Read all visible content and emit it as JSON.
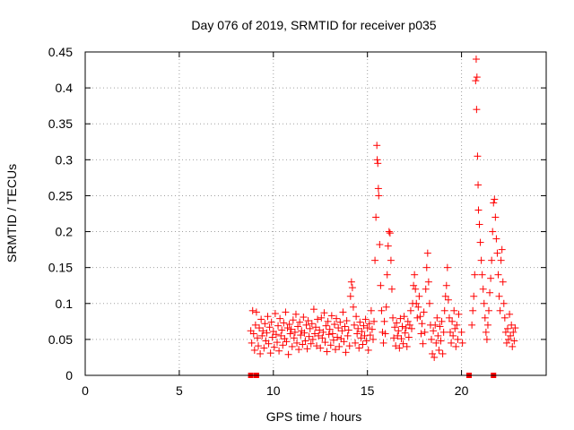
{
  "chart_data": {
    "type": "scatter",
    "title": "Day 076 of 2019, SRMTID for receiver p035",
    "xlabel": "GPS time / hours",
    "ylabel": "SRMTID / TECUs",
    "xlim": [
      0,
      24.5
    ],
    "ylim": [
      0,
      0.45
    ],
    "xticks": [
      0,
      5,
      10,
      15,
      20
    ],
    "yticks": [
      0,
      0.05,
      0.1,
      0.15,
      0.2,
      0.25,
      0.3,
      0.35,
      0.4,
      0.45
    ],
    "grid": true,
    "marker": "+",
    "color": "#ff0000",
    "series": [
      {
        "name": "SRMTID",
        "points": [
          [
            8.8,
            0.062
          ],
          [
            8.85,
            0.045
          ],
          [
            8.9,
            0.09
          ],
          [
            8.95,
            0.058
          ],
          [
            9.0,
            0.035
          ],
          [
            9.05,
            0.07
          ],
          [
            9.1,
            0.088
          ],
          [
            9.15,
            0.052
          ],
          [
            9.2,
            0.041
          ],
          [
            9.25,
            0.066
          ],
          [
            9.3,
            0.03
          ],
          [
            9.35,
            0.078
          ],
          [
            9.4,
            0.055
          ],
          [
            9.45,
            0.062
          ],
          [
            9.5,
            0.038
          ],
          [
            9.55,
            0.072
          ],
          [
            9.6,
            0.048
          ],
          [
            9.65,
            0.059
          ],
          [
            9.7,
            0.082
          ],
          [
            9.75,
            0.044
          ],
          [
            9.8,
            0.067
          ],
          [
            9.85,
            0.031
          ],
          [
            9.9,
            0.074
          ],
          [
            9.95,
            0.053
          ],
          [
            10.0,
            0.061
          ],
          [
            10.05,
            0.039
          ],
          [
            10.1,
            0.086
          ],
          [
            10.15,
            0.057
          ],
          [
            10.2,
            0.046
          ],
          [
            10.25,
            0.069
          ],
          [
            10.3,
            0.034
          ],
          [
            10.35,
            0.079
          ],
          [
            10.4,
            0.055
          ],
          [
            10.45,
            0.063
          ],
          [
            10.5,
            0.042
          ],
          [
            10.55,
            0.073
          ],
          [
            10.6,
            0.051
          ],
          [
            10.65,
            0.088
          ],
          [
            10.7,
            0.047
          ],
          [
            10.75,
            0.066
          ],
          [
            10.8,
            0.029
          ],
          [
            10.85,
            0.071
          ],
          [
            10.9,
            0.058
          ],
          [
            10.95,
            0.064
          ],
          [
            11.0,
            0.04
          ],
          [
            11.05,
            0.077
          ],
          [
            11.1,
            0.052
          ],
          [
            11.15,
            0.06
          ],
          [
            11.2,
            0.085
          ],
          [
            11.25,
            0.045
          ],
          [
            11.3,
            0.068
          ],
          [
            11.35,
            0.036
          ],
          [
            11.4,
            0.074
          ],
          [
            11.45,
            0.056
          ],
          [
            11.5,
            0.062
          ],
          [
            11.55,
            0.043
          ],
          [
            11.6,
            0.081
          ],
          [
            11.65,
            0.059
          ],
          [
            11.7,
            0.048
          ],
          [
            11.75,
            0.07
          ],
          [
            11.8,
            0.037
          ],
          [
            11.85,
            0.076
          ],
          [
            11.9,
            0.054
          ],
          [
            11.95,
            0.065
          ],
          [
            12.0,
            0.044
          ],
          [
            12.05,
            0.072
          ],
          [
            12.1,
            0.05
          ],
          [
            12.15,
            0.092
          ],
          [
            12.2,
            0.058
          ],
          [
            12.25,
            0.067
          ],
          [
            12.3,
            0.041
          ],
          [
            12.35,
            0.078
          ],
          [
            12.4,
            0.055
          ],
          [
            12.45,
            0.063
          ],
          [
            12.5,
            0.038
          ],
          [
            12.55,
            0.08
          ],
          [
            12.6,
            0.052
          ],
          [
            12.65,
            0.06
          ],
          [
            12.7,
            0.087
          ],
          [
            12.75,
            0.046
          ],
          [
            12.8,
            0.069
          ],
          [
            12.85,
            0.033
          ],
          [
            12.9,
            0.075
          ],
          [
            12.95,
            0.057
          ],
          [
            13.0,
            0.064
          ],
          [
            13.05,
            0.042
          ],
          [
            13.1,
            0.083
          ],
          [
            13.15,
            0.058
          ],
          [
            13.2,
            0.049
          ],
          [
            13.25,
            0.071
          ],
          [
            13.3,
            0.036
          ],
          [
            13.35,
            0.079
          ],
          [
            13.4,
            0.053
          ],
          [
            13.45,
            0.066
          ],
          [
            13.5,
            0.04
          ],
          [
            13.55,
            0.074
          ],
          [
            13.6,
            0.051
          ],
          [
            13.65,
            0.062
          ],
          [
            13.7,
            0.088
          ],
          [
            13.75,
            0.047
          ],
          [
            13.8,
            0.068
          ],
          [
            13.85,
            0.032
          ],
          [
            13.9,
            0.076
          ],
          [
            13.95,
            0.055
          ],
          [
            14.0,
            0.063
          ],
          [
            14.05,
            0.041
          ],
          [
            14.1,
            0.11
          ],
          [
            14.15,
            0.13
          ],
          [
            14.2,
            0.122
          ],
          [
            14.25,
            0.095
          ],
          [
            14.3,
            0.07
          ],
          [
            14.35,
            0.045
          ],
          [
            14.4,
            0.082
          ],
          [
            14.45,
            0.058
          ],
          [
            14.5,
            0.065
          ],
          [
            14.55,
            0.038
          ],
          [
            14.6,
            0.074
          ],
          [
            14.65,
            0.052
          ],
          [
            14.7,
            0.061
          ],
          [
            14.75,
            0.043
          ],
          [
            14.8,
            0.069
          ],
          [
            14.85,
            0.055
          ],
          [
            14.9,
            0.078
          ],
          [
            14.95,
            0.048
          ],
          [
            15.0,
            0.066
          ],
          [
            15.05,
            0.035
          ],
          [
            15.1,
            0.072
          ],
          [
            15.15,
            0.056
          ],
          [
            15.2,
            0.09
          ],
          [
            15.25,
            0.064
          ],
          [
            15.3,
            0.05
          ],
          [
            15.35,
            0.075
          ],
          [
            15.4,
            0.16
          ],
          [
            15.45,
            0.22
          ],
          [
            15.5,
            0.32
          ],
          [
            15.52,
            0.3
          ],
          [
            15.55,
            0.295
          ],
          [
            15.58,
            0.26
          ],
          [
            15.6,
            0.25
          ],
          [
            15.65,
            0.182
          ],
          [
            15.7,
            0.125
          ],
          [
            15.75,
            0.09
          ],
          [
            15.8,
            0.06
          ],
          [
            15.85,
            0.045
          ],
          [
            15.9,
            0.075
          ],
          [
            15.95,
            0.058
          ],
          [
            16.0,
            0.095
          ],
          [
            16.05,
            0.14
          ],
          [
            16.1,
            0.18
          ],
          [
            16.15,
            0.2
          ],
          [
            16.2,
            0.198
          ],
          [
            16.25,
            0.16
          ],
          [
            16.3,
            0.12
          ],
          [
            16.35,
            0.08
          ],
          [
            16.4,
            0.052
          ],
          [
            16.45,
            0.067
          ],
          [
            16.5,
            0.041
          ],
          [
            16.55,
            0.073
          ],
          [
            16.6,
            0.055
          ],
          [
            16.65,
            0.062
          ],
          [
            16.7,
            0.038
          ],
          [
            16.75,
            0.079
          ],
          [
            16.8,
            0.051
          ],
          [
            16.85,
            0.068
          ],
          [
            16.9,
            0.044
          ],
          [
            16.95,
            0.082
          ],
          [
            17.0,
            0.059
          ],
          [
            17.05,
            0.066
          ],
          [
            17.1,
            0.04
          ],
          [
            17.15,
            0.075
          ],
          [
            17.2,
            0.053
          ],
          [
            17.25,
            0.07
          ],
          [
            17.3,
            0.09
          ],
          [
            17.35,
            0.065
          ],
          [
            17.4,
            0.1
          ],
          [
            17.45,
            0.125
          ],
          [
            17.5,
            0.14
          ],
          [
            17.55,
            0.12
          ],
          [
            17.6,
            0.1
          ],
          [
            17.65,
            0.08
          ],
          [
            17.7,
            0.095
          ],
          [
            17.75,
            0.11
          ],
          [
            17.8,
            0.082
          ],
          [
            17.85,
            0.058
          ],
          [
            17.9,
            0.072
          ],
          [
            17.95,
            0.044
          ],
          [
            18.0,
            0.088
          ],
          [
            18.05,
            0.06
          ],
          [
            18.1,
            0.12
          ],
          [
            18.15,
            0.15
          ],
          [
            18.2,
            0.17
          ],
          [
            18.25,
            0.13
          ],
          [
            18.3,
            0.1
          ],
          [
            18.35,
            0.07
          ],
          [
            18.4,
            0.05
          ],
          [
            18.45,
            0.03
          ],
          [
            18.5,
            0.062
          ],
          [
            18.55,
            0.025
          ],
          [
            18.6,
            0.07
          ],
          [
            18.65,
            0.045
          ],
          [
            18.7,
            0.08
          ],
          [
            18.75,
            0.055
          ],
          [
            18.8,
            0.035
          ],
          [
            18.85,
            0.068
          ],
          [
            18.9,
            0.048
          ],
          [
            18.95,
            0.075
          ],
          [
            19.0,
            0.03
          ],
          [
            19.05,
            0.06
          ],
          [
            19.1,
            0.09
          ],
          [
            19.15,
            0.11
          ],
          [
            19.2,
            0.125
          ],
          [
            19.25,
            0.15
          ],
          [
            19.3,
            0.105
          ],
          [
            19.35,
            0.08
          ],
          [
            19.4,
            0.06
          ],
          [
            19.45,
            0.045
          ],
          [
            19.5,
            0.075
          ],
          [
            19.55,
            0.055
          ],
          [
            19.6,
            0.09
          ],
          [
            19.65,
            0.065
          ],
          [
            19.7,
            0.04
          ],
          [
            19.75,
            0.07
          ],
          [
            19.8,
            0.05
          ],
          [
            19.85,
            0.085
          ],
          [
            20.0,
            0.06
          ],
          [
            20.05,
            0.045
          ],
          [
            20.55,
            0.07
          ],
          [
            20.6,
            0.09
          ],
          [
            20.65,
            0.11
          ],
          [
            20.7,
            0.14
          ],
          [
            20.75,
            0.41
          ],
          [
            20.78,
            0.44
          ],
          [
            20.8,
            0.37
          ],
          [
            20.82,
            0.415
          ],
          [
            20.85,
            0.305
          ],
          [
            20.88,
            0.265
          ],
          [
            20.9,
            0.23
          ],
          [
            20.95,
            0.21
          ],
          [
            21.0,
            0.185
          ],
          [
            21.05,
            0.16
          ],
          [
            21.1,
            0.14
          ],
          [
            21.15,
            0.12
          ],
          [
            21.2,
            0.1
          ],
          [
            21.25,
            0.08
          ],
          [
            21.3,
            0.06
          ],
          [
            21.35,
            0.05
          ],
          [
            21.4,
            0.07
          ],
          [
            21.45,
            0.09
          ],
          [
            21.5,
            0.115
          ],
          [
            21.55,
            0.135
          ],
          [
            21.6,
            0.16
          ],
          [
            21.65,
            0.2
          ],
          [
            21.7,
            0.24
          ],
          [
            21.75,
            0.245
          ],
          [
            21.8,
            0.22
          ],
          [
            21.85,
            0.19
          ],
          [
            21.9,
            0.17
          ],
          [
            21.95,
            0.14
          ],
          [
            22.0,
            0.11
          ],
          [
            22.05,
            0.09
          ],
          [
            22.1,
            0.16
          ],
          [
            22.15,
            0.175
          ],
          [
            22.2,
            0.13
          ],
          [
            22.25,
            0.1
          ],
          [
            22.3,
            0.08
          ],
          [
            22.35,
            0.06
          ],
          [
            22.4,
            0.045
          ],
          [
            22.45,
            0.065
          ],
          [
            22.5,
            0.05
          ],
          [
            22.55,
            0.085
          ],
          [
            22.6,
            0.055
          ],
          [
            22.65,
            0.07
          ],
          [
            22.7,
            0.04
          ],
          [
            22.75,
            0.06
          ],
          [
            22.8,
            0.048
          ],
          [
            22.85,
            0.066
          ]
        ]
      }
    ],
    "outage_markers_x": [
      8.8,
      9.1,
      20.4,
      21.7
    ]
  }
}
